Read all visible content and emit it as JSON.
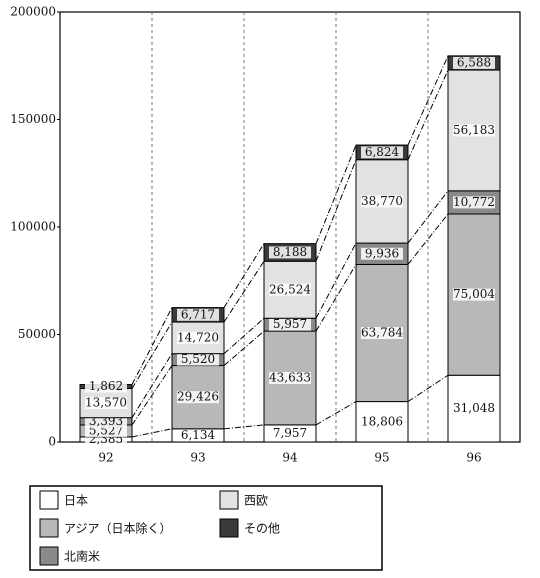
{
  "chart_data": {
    "type": "stacked_bar",
    "categories": [
      "92",
      "93",
      "94",
      "95",
      "96"
    ],
    "series": [
      {
        "name": "日本",
        "color": "#ffffff",
        "values": [
          2385,
          6134,
          7957,
          18806,
          31048
        ],
        "value_labels": [
          "2,385",
          "6,134",
          "7,957",
          "18,806",
          "31,048"
        ]
      },
      {
        "name": "アジア（日本除く）",
        "color": "#b8b8b8",
        "values": [
          5527,
          29426,
          43633,
          63784,
          75004
        ],
        "value_labels": [
          "5,527",
          "29,426",
          "43,633",
          "63,784",
          "75,004"
        ]
      },
      {
        "name": "北南米",
        "color": "#8a8a8a",
        "values": [
          3393,
          5520,
          5957,
          9936,
          10772
        ],
        "value_labels": [
          "3,393",
          "5,520",
          "5,957",
          "9,936",
          "10,772"
        ]
      },
      {
        "name": "西欧",
        "color": "#e2e2e2",
        "values": [
          13570,
          14720,
          26524,
          38770,
          56183
        ],
        "value_labels": [
          "13,570",
          "14,720",
          "26,524",
          "38,770",
          "56,183"
        ]
      },
      {
        "name": "その他",
        "color": "#3a3a3a",
        "values": [
          1862,
          6717,
          8188,
          6824,
          6588
        ],
        "value_labels": [
          "1,862",
          "6,717",
          "8,188",
          "6,824",
          "6,588"
        ]
      }
    ],
    "ylim": [
      0,
      200000
    ],
    "yticks": [
      0,
      50000,
      100000,
      150000,
      200000
    ]
  }
}
